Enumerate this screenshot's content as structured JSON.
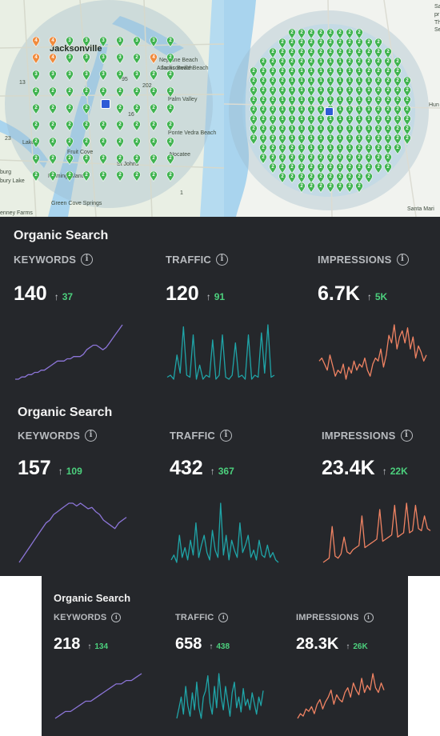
{
  "map_left": {
    "labels": [
      "Jacksonville",
      "Atlantic Beach",
      "Neptune Beach",
      "Jacksonville Beach",
      "Ponte Vedra Beach",
      "Palm Valley",
      "Fruit Cove",
      "Nocatee",
      "St Johns",
      "Fleming Island",
      "Lake",
      "burg",
      "bury Lake",
      "enney Farms",
      "Green Cove Springs",
      "23",
      "1",
      "95",
      "202",
      "16",
      "13"
    ],
    "pin_rows": [
      [
        "4",
        "4",
        "3",
        "3",
        "3",
        "3",
        "3",
        "3",
        "2"
      ],
      [
        "4",
        "4",
        "3",
        "3",
        "3",
        "3",
        "2",
        "4",
        "2"
      ],
      [
        "3",
        "3",
        "3",
        "3",
        "3",
        "3",
        "3",
        "2",
        "2"
      ],
      [
        "2",
        "2",
        "2",
        "2",
        "2",
        "2",
        "2",
        "2",
        "2"
      ],
      [
        "2",
        "2",
        "2",
        "2",
        "",
        "2",
        "2",
        "2",
        "2"
      ],
      [
        "2",
        "2",
        "2",
        "2",
        "2",
        "2",
        "2",
        "2",
        "2"
      ],
      [
        "2",
        "2",
        "2",
        "2",
        "2",
        "2",
        "2",
        "2",
        "2"
      ],
      [
        "2",
        "2",
        "2",
        "2",
        "2",
        "2",
        "2",
        "2",
        "2"
      ],
      [
        "2",
        "2",
        "2",
        "2",
        "2",
        "2",
        "2",
        "2",
        "2"
      ]
    ],
    "colors": {
      "pin_green": "#3fb34f",
      "pin_orange": "#f08a3c",
      "circle": "#9bb8c8",
      "water": "#a9d4ee"
    }
  },
  "map_right": {
    "labels": [
      "Sa",
      "pr",
      "Th",
      "Se",
      "Hun",
      "Santa Mari"
    ],
    "pin_values": [
      "1",
      "2"
    ],
    "colors": {
      "pin_green": "#3fb34f",
      "circle": "#9bb8c8"
    }
  },
  "panels": [
    {
      "title": "Organic Search",
      "metrics": [
        {
          "label": "KEYWORDS",
          "value": "140",
          "delta": "37",
          "color": "#8c75d8",
          "series": [
            12,
            12,
            13,
            13,
            14,
            14,
            15,
            15,
            16,
            16,
            17,
            18,
            19,
            20,
            20,
            20,
            21,
            21,
            22,
            22,
            22,
            23,
            25,
            26,
            27,
            27,
            26,
            25,
            26,
            28,
            30,
            32,
            34,
            36
          ]
        },
        {
          "label": "TRAFFIC",
          "value": "120",
          "delta": "91",
          "color": "#1fa5a8",
          "series": [
            8,
            10,
            6,
            30,
            12,
            58,
            10,
            8,
            50,
            6,
            20,
            6,
            10,
            8,
            45,
            6,
            10,
            50,
            8,
            6,
            10,
            42,
            8,
            10,
            6,
            50,
            6,
            10,
            8,
            52,
            12,
            60,
            8,
            10
          ]
        },
        {
          "label": "IMPRESSIONS",
          "value": "6.7K",
          "delta": "5K",
          "color": "#f08363",
          "series": [
            28,
            30,
            26,
            22,
            32,
            25,
            18,
            22,
            20,
            26,
            16,
            24,
            20,
            28,
            22,
            26,
            24,
            30,
            22,
            18,
            26,
            30,
            28,
            36,
            24,
            32,
            45,
            40,
            52,
            36,
            44,
            48,
            40,
            50,
            36,
            44,
            30,
            38,
            34,
            28,
            32
          ]
        }
      ]
    },
    {
      "title": "Organic Search",
      "metrics": [
        {
          "label": "KEYWORDS",
          "value": "157",
          "delta": "109",
          "color": "#8c75d8",
          "series": [
            10,
            14,
            18,
            22,
            26,
            30,
            34,
            38,
            40,
            44,
            46,
            48,
            50,
            52,
            52,
            50,
            52,
            50,
            48,
            49,
            46,
            44,
            40,
            38,
            36,
            34,
            38,
            40,
            42
          ]
        },
        {
          "label": "TRAFFIC",
          "value": "432",
          "delta": "367",
          "color": "#1fa5a8",
          "series": [
            10,
            14,
            8,
            30,
            12,
            20,
            10,
            26,
            14,
            40,
            12,
            22,
            30,
            16,
            10,
            34,
            18,
            12,
            56,
            14,
            30,
            10,
            26,
            18,
            12,
            40,
            16,
            22,
            30,
            12,
            18,
            10,
            26,
            14,
            12,
            22,
            12,
            16,
            10,
            8
          ]
        },
        {
          "label": "IMPRESSIONS",
          "value": "23.4K",
          "delta": "22K",
          "color": "#f08363",
          "series": [
            6,
            8,
            10,
            40,
            12,
            10,
            14,
            30,
            16,
            14,
            18,
            20,
            22,
            50,
            20,
            22,
            24,
            26,
            28,
            56,
            26,
            28,
            30,
            32,
            60,
            30,
            32,
            34,
            62,
            34,
            36,
            60,
            38,
            36,
            50,
            38,
            36
          ]
        }
      ]
    },
    {
      "title": "Organic Search",
      "metrics": [
        {
          "label": "KEYWORDS",
          "value": "218",
          "delta": "134",
          "color": "#8c75d8",
          "series": [
            8,
            10,
            12,
            12,
            14,
            16,
            18,
            18,
            20,
            22,
            24,
            26,
            28,
            28,
            30,
            30,
            32,
            34
          ]
        },
        {
          "label": "TRAFFIC",
          "value": "658",
          "delta": "438",
          "color": "#1fa5a8",
          "series": [
            10,
            20,
            30,
            14,
            40,
            22,
            12,
            34,
            18,
            44,
            20,
            10,
            30,
            36,
            50,
            24,
            14,
            40,
            20,
            52,
            30,
            18,
            40,
            26,
            12,
            34,
            44,
            20,
            30,
            16,
            38,
            22,
            28,
            18,
            34,
            24,
            14,
            30,
            22,
            36
          ]
        },
        {
          "label": "IMPRESSIONS",
          "value": "28.3K",
          "delta": "26K",
          "color": "#f08363",
          "series": [
            6,
            10,
            8,
            14,
            12,
            16,
            10,
            18,
            22,
            14,
            20,
            24,
            30,
            18,
            26,
            22,
            20,
            28,
            32,
            24,
            36,
            30,
            26,
            40,
            28,
            34,
            30,
            44,
            32,
            28,
            36,
            30
          ]
        }
      ]
    }
  ]
}
